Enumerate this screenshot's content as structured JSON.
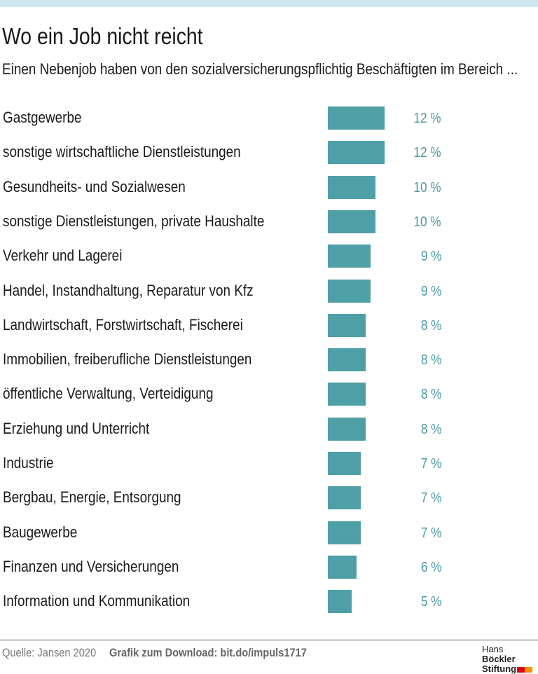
{
  "header": {
    "title": "Wo ein Job nicht reicht",
    "subtitle": "Einen Nebenjob haben von den sozialversicherungspflichtig Beschäftigten im Bereich ..."
  },
  "chart_data": {
    "type": "bar",
    "orientation": "horizontal",
    "categories": [
      "Gastgewerbe",
      "sonstige wirtschaftliche Dienstleistungen",
      "Gesundheits- und Sozialwesen",
      "sonstige Dienstleistungen, private Haushalte",
      "Verkehr und Lagerei",
      "Handel, Instandhaltung, Reparatur von Kfz",
      "Landwirtschaft, Forstwirtschaft, Fischerei",
      "Immobilien, freiberufliche Dienstleistungen",
      "öffentliche Verwaltung, Verteidigung",
      "Erziehung und Unterricht",
      "Industrie",
      "Bergbau, Energie, Entsorgung",
      "Baugewerbe",
      "Finanzen und Versicherungen",
      "Information und Kommunikation"
    ],
    "values": [
      12,
      12,
      10,
      10,
      9,
      9,
      8,
      8,
      8,
      8,
      7,
      7,
      7,
      6,
      5
    ],
    "value_labels": [
      "12 %",
      "12 %",
      "10 %",
      "10 %",
      "9 %",
      "9 %",
      "8 %",
      "8 %",
      "8 %",
      "8 %",
      "7 %",
      "7 %",
      "7 %",
      "6 %",
      "5 %"
    ],
    "unit": "%",
    "grid": false,
    "bar_color": "#4f9fa7",
    "label_color": "#4a9aa3"
  },
  "footer": {
    "source": "Quelle: Jansen 2020",
    "download": "Grafik zum Download: bit.do/impuls1717",
    "logo_line1a": "Hans",
    "logo_line1b": "Böckler",
    "logo_line2": "Stiftung",
    "logo_colors": [
      "#e2001a",
      "#f39200"
    ]
  }
}
